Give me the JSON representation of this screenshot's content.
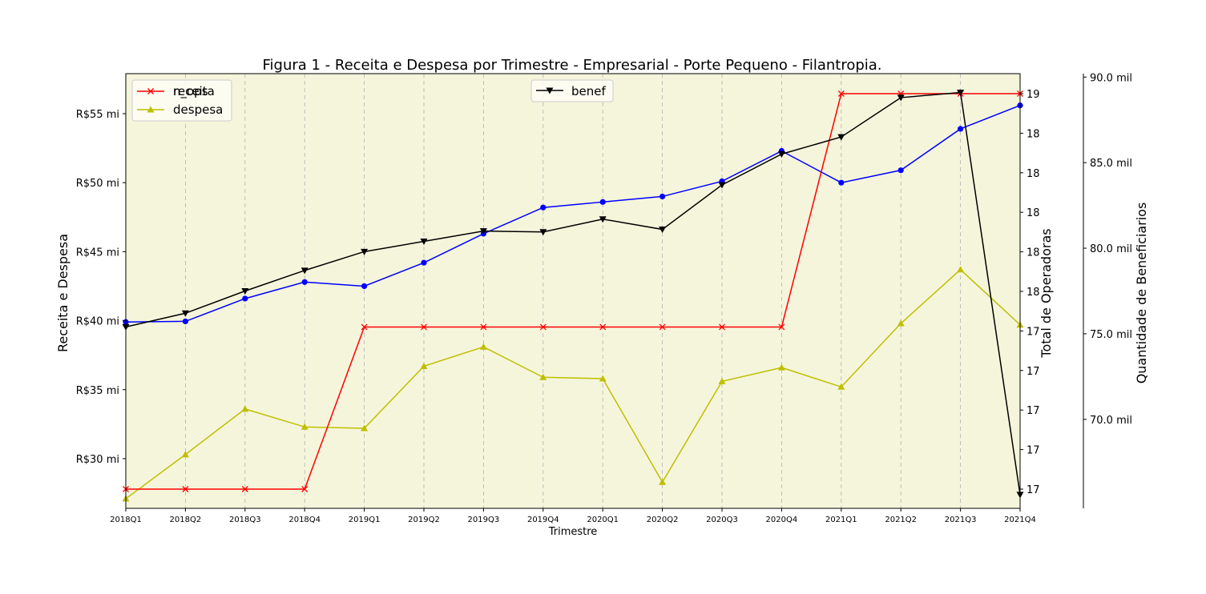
{
  "chart_data": {
    "type": "line",
    "title": "Figura 1 - Receita e Despesa por Trimestre - Empresarial - Porte Pequeno - Filantropia.",
    "xlabel": "Trimestre",
    "categories": [
      "2018Q1",
      "2018Q2",
      "2018Q3",
      "2018Q4",
      "2019Q1",
      "2019Q2",
      "2019Q3",
      "2019Q4",
      "2020Q1",
      "2020Q2",
      "2020Q3",
      "2020Q4",
      "2021Q1",
      "2021Q2",
      "2021Q3",
      "2021Q4"
    ],
    "grid": "vertical dashed",
    "background": "#f5f5dc",
    "axes": {
      "left": {
        "label": "Receita e Despesa",
        "ylim": [
          26.4,
          57.9
        ],
        "ticks": [
          30,
          35,
          40,
          45,
          50,
          55
        ],
        "tick_labels": [
          "R$30 mi",
          "R$35 mi",
          "R$40 mi",
          "R$45 mi",
          "R$50 mi",
          "R$55 mi"
        ]
      },
      "right1": {
        "label": "Total de Operadoras",
        "ylim": [
          16.96,
          19.0
        ],
        "ticks": [
          17.0,
          17.2,
          17.4,
          17.6,
          17.8,
          18.0,
          18.2,
          18.4,
          18.6,
          18.8,
          19.0
        ],
        "tick_labels": [
          "17",
          "17",
          "17",
          "17",
          "17",
          "18",
          "18",
          "18",
          "18",
          "18",
          "19"
        ]
      },
      "right2": {
        "label": "Quantidade de Beneficiarios",
        "ylim": [
          64.8,
          90.2
        ],
        "ticks": [
          70,
          75,
          80,
          85,
          90
        ],
        "tick_labels": [
          "70.0 mil",
          "75.0 mil",
          "80.0 mil",
          "85.0 mil",
          "90.0 mil"
        ]
      }
    },
    "series": [
      {
        "key": "receita",
        "name": "receita",
        "axis": "left",
        "color": "#0000ff",
        "marker": "circle",
        "values": [
          39.9,
          39.95,
          41.6,
          42.8,
          42.5,
          44.2,
          46.3,
          48.2,
          48.6,
          49.0,
          50.1,
          52.3,
          50.0,
          50.9,
          53.9,
          55.6
        ]
      },
      {
        "key": "despesa",
        "name": "despesa",
        "axis": "left",
        "color": "#bfbf00",
        "marker": "triangle-up",
        "values": [
          27.1,
          30.3,
          33.6,
          32.3,
          32.2,
          36.7,
          38.1,
          35.9,
          35.8,
          28.3,
          35.6,
          36.6,
          35.2,
          39.8,
          43.7,
          39.7
        ]
      },
      {
        "key": "n_ops",
        "name": "n_ops",
        "axis": "right1",
        "color": "#ff0000",
        "marker": "x",
        "values": [
          17.0,
          17.0,
          17.0,
          17.0,
          17.82,
          17.82,
          17.82,
          17.82,
          17.82,
          17.82,
          17.82,
          17.82,
          19.0,
          19.0,
          19.0,
          19.0
        ]
      },
      {
        "key": "benef",
        "name": "benef",
        "axis": "right2",
        "color": "#000000",
        "marker": "triangle-down",
        "values": [
          75.4,
          76.2,
          77.5,
          78.7,
          79.8,
          80.4,
          81.0,
          80.95,
          81.7,
          81.1,
          83.7,
          85.5,
          86.5,
          88.8,
          89.1,
          65.6
        ]
      }
    ],
    "legends": [
      {
        "position": "upper-left",
        "entries": [
          "n_ops",
          "despesa"
        ],
        "hidden_label": "receita"
      },
      {
        "position": "upper-center",
        "entries": [
          "benef"
        ]
      }
    ]
  }
}
